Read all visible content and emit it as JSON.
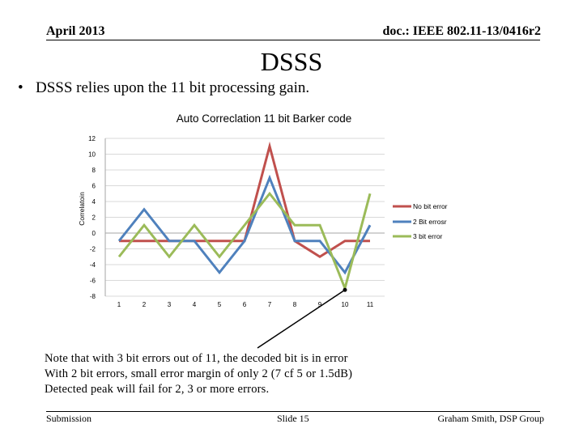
{
  "header": {
    "date": "April 2013",
    "doc": "doc.: IEEE 802.11-13/0416r2"
  },
  "slide_title": "DSSS",
  "bullet": {
    "symbol": "•",
    "text": "DSSS relies upon the 11 bit processing gain."
  },
  "note_lines": [
    "Note  that with 3 bit errors out of 11, the decoded bit is in error",
    "With 2 bit errors, small error margin of only 2 (7 cf 5 or 1.5dB)",
    "Detected peak will fail for 2, 3 or more errors."
  ],
  "footer": {
    "left": "Submission",
    "center": "Slide 15",
    "right": "Graham Smith, DSP Group"
  },
  "colors": {
    "no_error": "#c0504d",
    "two_bit": "#4f81bd",
    "three_bit": "#9bbb59",
    "grid": "#d9d9d9",
    "axis": "#a6a6a6"
  },
  "chart_data": {
    "type": "line",
    "title": "Auto Correclation 11 bit Barker code",
    "ylabel": "Correlatoin",
    "xlabel": "",
    "categories": [
      "1",
      "2",
      "3",
      "4",
      "5",
      "6",
      "7",
      "8",
      "9",
      "10",
      "11"
    ],
    "ylim": [
      -8,
      12
    ],
    "yticks": [
      -8,
      -6,
      -4,
      -2,
      0,
      2,
      4,
      6,
      8,
      10,
      12
    ],
    "grid": true,
    "legend_position": "right",
    "series": [
      {
        "name": "No bit error",
        "color": "#c0504d",
        "values": [
          -1,
          -1,
          -1,
          -1,
          -1,
          -1,
          11,
          -1,
          -3,
          -1,
          -1
        ]
      },
      {
        "name": "2 Bit errosr",
        "color": "#4f81bd",
        "values": [
          -1,
          3,
          -1,
          -1,
          -5,
          -1,
          7,
          -1,
          -1,
          -5,
          1
        ]
      },
      {
        "name": "3 bit error",
        "color": "#9bbb59",
        "values": [
          -3,
          1,
          -3,
          1,
          -3,
          1,
          5,
          1,
          1,
          -7,
          5
        ]
      }
    ]
  }
}
